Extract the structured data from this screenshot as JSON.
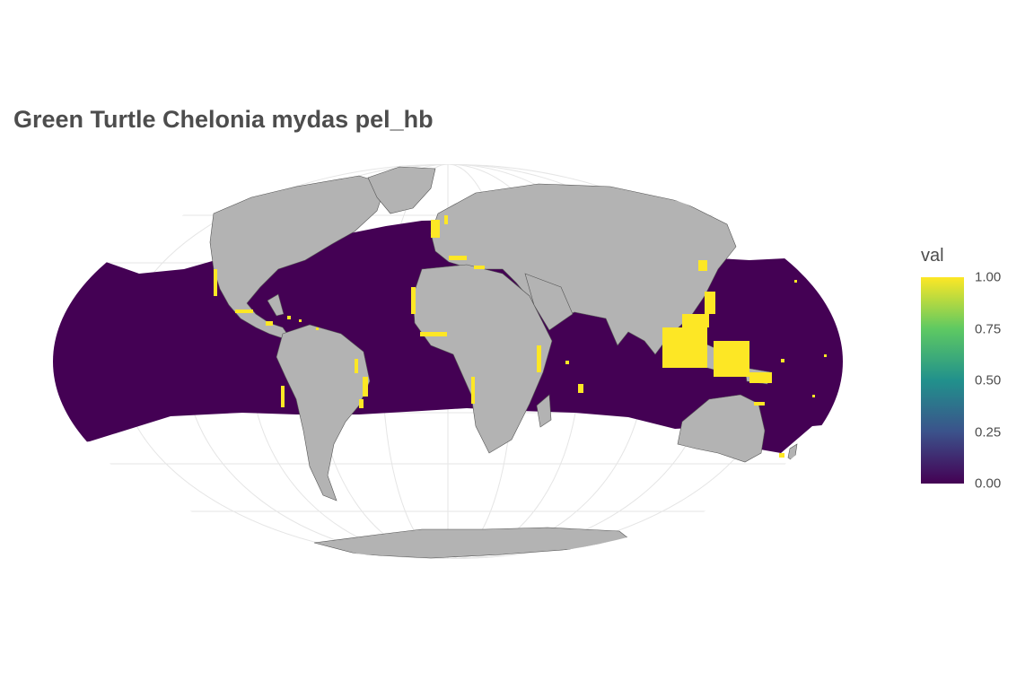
{
  "title": "Green Turtle Chelonia mydas pel_hb",
  "legend": {
    "title": "val",
    "ticks": [
      "1.00",
      "0.75",
      "0.50",
      "0.25",
      "0.00"
    ],
    "range": [
      0,
      1
    ],
    "palette": [
      "#440154",
      "#3b528b",
      "#21918c",
      "#5ec962",
      "#fde725"
    ]
  },
  "colors": {
    "ocean_value_0": "#440154",
    "habitat_value_1": "#fde725",
    "land": "#b3b3b3",
    "graticule": "#e5e5e5"
  },
  "map": {
    "projection": "Mollweide",
    "layers": [
      "raster val",
      "land polygons",
      "graticule"
    ]
  }
}
